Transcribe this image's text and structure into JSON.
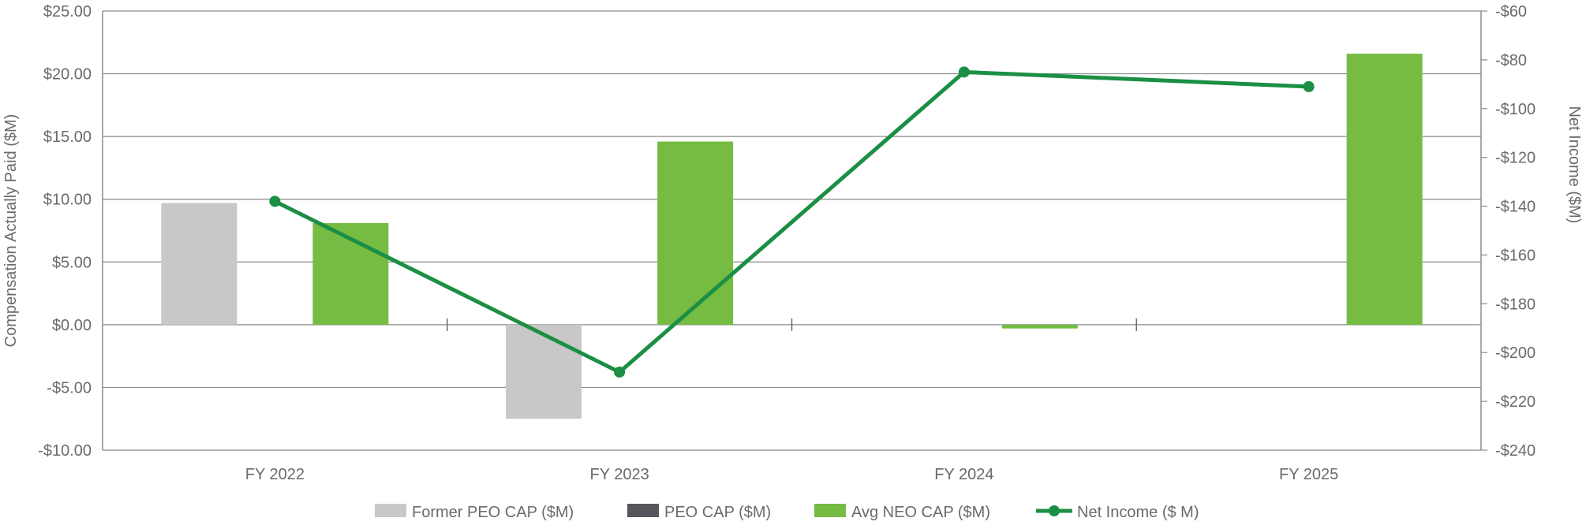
{
  "chart_data": {
    "type": "bar",
    "categories": [
      "FY 2022",
      "FY 2023",
      "FY 2024",
      "FY 2025"
    ],
    "series": [
      {
        "name": "Former PEO CAP ($M)",
        "kind": "bar",
        "axis": "left",
        "color": "#c8c8c8",
        "values": [
          9.7,
          -7.5,
          null,
          null
        ]
      },
      {
        "name": "PEO CAP ($M)",
        "kind": "bar",
        "axis": "left",
        "color": "#54565b",
        "values": [
          null,
          null,
          null,
          null
        ]
      },
      {
        "name": "Avg NEO CAP ($M)",
        "kind": "bar",
        "axis": "left",
        "color": "#76bc43",
        "values": [
          8.1,
          14.6,
          -0.3,
          21.6
        ]
      },
      {
        "name": "Net Income ($ M)",
        "kind": "line",
        "axis": "right",
        "color": "#1b8f44",
        "values": [
          -138,
          -208,
          -85,
          -91
        ]
      }
    ],
    "left_axis": {
      "label": "Compensation Actually Paid ($M)",
      "min": -10,
      "max": 25,
      "ticks": [
        25,
        20,
        15,
        10,
        5,
        0,
        -5,
        -10
      ],
      "tick_labels": [
        "$25.00",
        "$20.00",
        "$15.00",
        "$10.00",
        "$5.00",
        "$0.00",
        "-$5.00",
        "-$10.00"
      ]
    },
    "right_axis": {
      "label": "Net Income ($M)",
      "min": -240,
      "max": -60,
      "ticks": [
        -60,
        -80,
        -100,
        -120,
        -140,
        -160,
        -180,
        -200,
        -220,
        -240
      ],
      "tick_labels": [
        "-$60",
        "-$80",
        "-$100",
        "-$120",
        "-$140",
        "-$160",
        "-$180",
        "-$200",
        "-$220",
        "-$240"
      ]
    },
    "grid": true,
    "legend_position": "bottom-center"
  }
}
